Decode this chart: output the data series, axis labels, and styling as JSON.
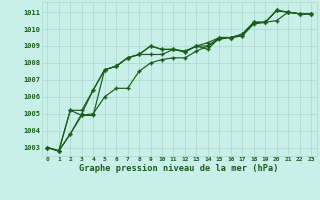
{
  "title": "Graphe pression niveau de la mer (hPa)",
  "bg_color": "#c8f0e8",
  "grid_color": "#a8d8d0",
  "line_color": "#1a5c1a",
  "xmin": -0.5,
  "xmax": 23.5,
  "ymin": 1002.5,
  "ymax": 1011.6,
  "yticks": [
    1003,
    1004,
    1005,
    1006,
    1007,
    1008,
    1009,
    1010,
    1011
  ],
  "xtick_fontsize": 4.5,
  "ytick_fontsize": 5.0,
  "xlabel_fontsize": 6.2,
  "series": [
    [
      1003.0,
      1002.8,
      1003.8,
      1004.9,
      1004.9,
      1007.6,
      1007.8,
      1008.3,
      1008.5,
      1009.0,
      1008.8,
      1008.8,
      1008.65,
      1009.0,
      1008.8,
      1009.5,
      1009.5,
      1009.6,
      1010.4,
      1010.4,
      1011.1,
      1011.0,
      1010.9,
      1010.9
    ],
    [
      1003.0,
      1002.8,
      1003.8,
      1005.0,
      1006.4,
      1007.6,
      1007.8,
      1008.3,
      1008.5,
      1008.5,
      1008.5,
      1008.8,
      1008.65,
      1009.0,
      1009.0,
      1009.5,
      1009.5,
      1009.7,
      1010.4,
      1010.4,
      1011.1,
      1011.0,
      1010.9,
      1010.9
    ],
    [
      1003.0,
      1002.8,
      1005.2,
      1005.2,
      1006.4,
      1007.6,
      1007.8,
      1008.3,
      1008.5,
      1009.0,
      1008.8,
      1008.8,
      1008.7,
      1009.0,
      1009.2,
      1009.5,
      1009.5,
      1009.7,
      1010.4,
      1010.4,
      1011.1,
      1011.0,
      1010.9,
      1010.9
    ],
    [
      1003.0,
      1002.8,
      1005.2,
      1004.9,
      1005.0,
      1006.0,
      1006.5,
      1006.5,
      1007.5,
      1008.0,
      1008.2,
      1008.3,
      1008.3,
      1008.7,
      1009.0,
      1009.4,
      1009.5,
      1009.6,
      1010.3,
      1010.4,
      1010.5,
      1011.0,
      1010.9,
      1010.9
    ]
  ]
}
